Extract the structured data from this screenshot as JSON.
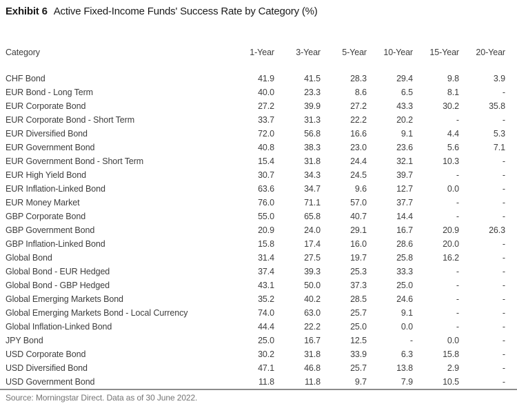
{
  "title": {
    "exhibit_label": "Exhibit 6",
    "text": "Active Fixed-Income Funds' Success Rate by Category (%)"
  },
  "table": {
    "columns": [
      "Category",
      "1-Year",
      "3-Year",
      "5-Year",
      "10-Year",
      "15-Year",
      "20-Year"
    ],
    "rows": [
      {
        "category": "CHF Bond",
        "values": [
          "41.9",
          "41.5",
          "28.3",
          "29.4",
          "9.8",
          "3.9"
        ]
      },
      {
        "category": "EUR Bond - Long Term",
        "values": [
          "40.0",
          "23.3",
          "8.6",
          "6.5",
          "8.1",
          "-"
        ]
      },
      {
        "category": "EUR Corporate Bond",
        "values": [
          "27.2",
          "39.9",
          "27.2",
          "43.3",
          "30.2",
          "35.8"
        ]
      },
      {
        "category": "EUR Corporate Bond - Short Term",
        "values": [
          "33.7",
          "31.3",
          "22.2",
          "20.2",
          "-",
          "-"
        ]
      },
      {
        "category": "EUR Diversified Bond",
        "values": [
          "72.0",
          "56.8",
          "16.6",
          "9.1",
          "4.4",
          "5.3"
        ]
      },
      {
        "category": "EUR Government Bond",
        "values": [
          "40.8",
          "38.3",
          "23.0",
          "23.6",
          "5.6",
          "7.1"
        ]
      },
      {
        "category": "EUR Government Bond - Short Term",
        "values": [
          "15.4",
          "31.8",
          "24.4",
          "32.1",
          "10.3",
          "-"
        ]
      },
      {
        "category": "EUR High Yield Bond",
        "values": [
          "30.7",
          "34.3",
          "24.5",
          "39.7",
          "-",
          "-"
        ]
      },
      {
        "category": "EUR Inflation-Linked Bond",
        "values": [
          "63.6",
          "34.7",
          "9.6",
          "12.7",
          "0.0",
          "-"
        ]
      },
      {
        "category": "EUR Money Market",
        "values": [
          "76.0",
          "71.1",
          "57.0",
          "37.7",
          "-",
          "-"
        ]
      },
      {
        "category": "GBP Corporate Bond",
        "values": [
          "55.0",
          "65.8",
          "40.7",
          "14.4",
          "-",
          "-"
        ]
      },
      {
        "category": "GBP Government Bond",
        "values": [
          "20.9",
          "24.0",
          "29.1",
          "16.7",
          "20.9",
          "26.3"
        ]
      },
      {
        "category": "GBP Inflation-Linked Bond",
        "values": [
          "15.8",
          "17.4",
          "16.0",
          "28.6",
          "20.0",
          "-"
        ]
      },
      {
        "category": "Global Bond",
        "values": [
          "31.4",
          "27.5",
          "19.7",
          "25.8",
          "16.2",
          "-"
        ]
      },
      {
        "category": "Global Bond - EUR Hedged",
        "values": [
          "37.4",
          "39.3",
          "25.3",
          "33.3",
          "-",
          "-"
        ]
      },
      {
        "category": "Global Bond - GBP Hedged",
        "values": [
          "43.1",
          "50.0",
          "37.3",
          "25.0",
          "-",
          "-"
        ]
      },
      {
        "category": "Global Emerging Markets Bond",
        "values": [
          "35.2",
          "40.2",
          "28.5",
          "24.6",
          "-",
          "-"
        ]
      },
      {
        "category": "Global Emerging Markets Bond - Local Currency",
        "values": [
          "74.0",
          "63.0",
          "25.7",
          "9.1",
          "-",
          "-"
        ]
      },
      {
        "category": "Global Inflation-Linked Bond",
        "values": [
          "44.4",
          "22.2",
          "25.0",
          "0.0",
          "-",
          "-"
        ]
      },
      {
        "category": "JPY Bond",
        "values": [
          "25.0",
          "16.7",
          "12.5",
          "-",
          "0.0",
          "-"
        ]
      },
      {
        "category": "USD Corporate Bond",
        "values": [
          "30.2",
          "31.8",
          "33.9",
          "6.3",
          "15.8",
          "-"
        ]
      },
      {
        "category": "USD Diversified Bond",
        "values": [
          "47.1",
          "46.8",
          "25.7",
          "13.8",
          "2.9",
          "-"
        ]
      },
      {
        "category": "USD Government Bond",
        "values": [
          "11.8",
          "11.8",
          "9.7",
          "7.9",
          "10.5",
          "-"
        ]
      }
    ]
  },
  "footer": {
    "source": "Source: Morningstar Direct. Data as of 30 June 2022."
  },
  "colors": {
    "title_text": "#1a1a1a",
    "body_text": "#3d3d3d",
    "footer_text": "#737373",
    "rule": "#8c8c8c",
    "background": "#ffffff"
  }
}
